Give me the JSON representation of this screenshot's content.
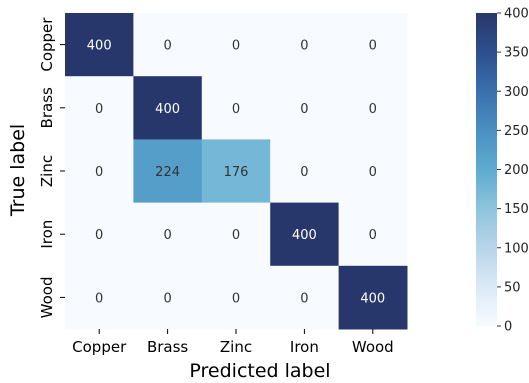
{
  "chart_data": {
    "type": "heatmap",
    "title": "",
    "xlabel": "Predicted label",
    "ylabel": "True label",
    "x_categories": [
      "Copper",
      "Brass",
      "Zinc",
      "Iron",
      "Wood"
    ],
    "y_categories": [
      "Copper",
      "Brass",
      "Zinc",
      "Iron",
      "Wood"
    ],
    "values": [
      [
        400,
        0,
        0,
        0,
        0
      ],
      [
        0,
        400,
        0,
        0,
        0
      ],
      [
        0,
        224,
        176,
        0,
        0
      ],
      [
        0,
        0,
        0,
        400,
        0
      ],
      [
        0,
        0,
        0,
        0,
        400
      ]
    ],
    "value_range": [
      0,
      400
    ],
    "colorbar_ticks": [
      0,
      50,
      100,
      150,
      200,
      250,
      300,
      350,
      400
    ],
    "colormap": [
      "#f7fbff",
      "#dbeaf6",
      "#b7d4ea",
      "#8ec4dc",
      "#5eabd0",
      "#4a90c2",
      "#3a70ad",
      "#2e4f8f",
      "#28376b"
    ]
  }
}
